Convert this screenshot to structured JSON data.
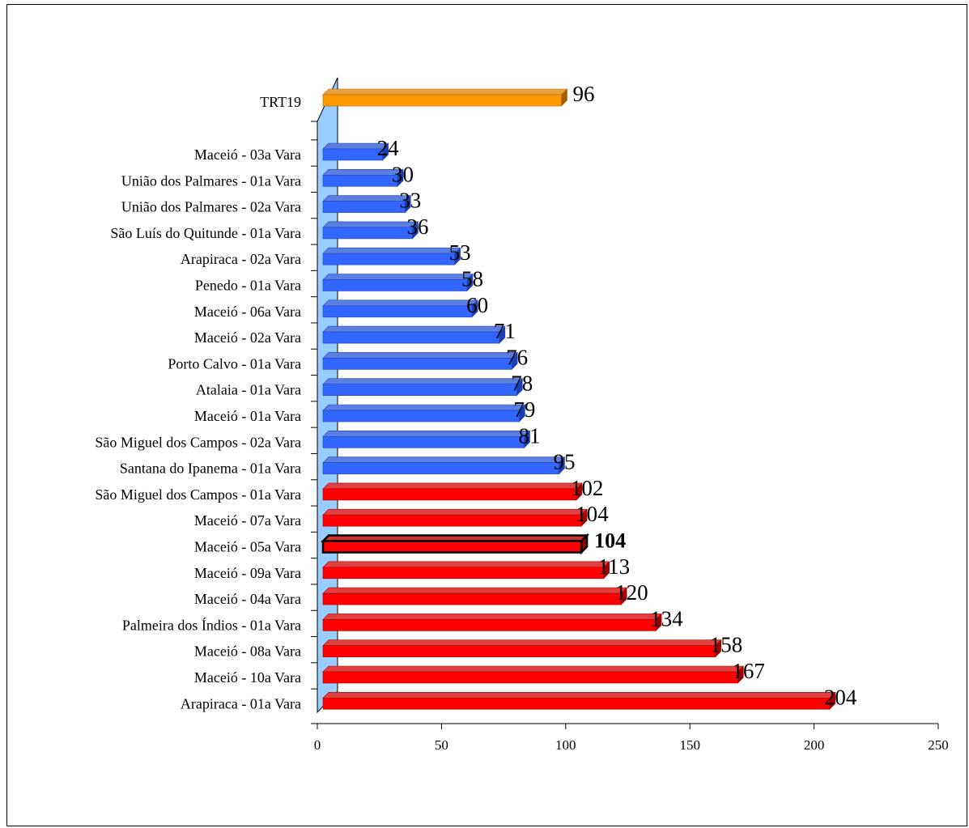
{
  "chart_data": {
    "type": "bar",
    "orientation": "horizontal",
    "categories": [
      "TRT19",
      "Maceió  - 03a Vara",
      "União dos Palmares  - 01a Vara",
      "União dos Palmares  - 02a Vara",
      "São Luís do Quitunde  - 01a Vara",
      "Arapiraca  - 02a Vara",
      "Penedo  - 01a Vara",
      "Maceió  - 06a Vara",
      "Maceió  - 02a Vara",
      "Porto Calvo  - 01a Vara",
      "Atalaia  - 01a Vara",
      "Maceió  - 01a Vara",
      "São Miguel dos Campos  - 02a Vara",
      "Santana do Ipanema  - 01a Vara",
      "São Miguel dos Campos  - 01a Vara",
      "Maceió  - 07a Vara",
      "Maceió  - 05a Vara",
      "Maceió  - 09a Vara",
      "Maceió  - 04a Vara",
      "Palmeira dos Índios  - 01a Vara",
      "Maceió  - 08a Vara",
      "Maceió  - 10a Vara",
      "Arapiraca  - 01a Vara"
    ],
    "values": [
      96,
      24,
      30,
      33,
      36,
      53,
      58,
      60,
      71,
      76,
      78,
      79,
      81,
      95,
      102,
      104,
      104,
      113,
      120,
      134,
      158,
      167,
      204
    ],
    "value_labels": [
      "96",
      "24",
      "30",
      "33",
      "36",
      "53",
      "58",
      "60",
      "71",
      "76",
      "78",
      "79",
      "81",
      "95",
      "102",
      "104",
      "104",
      "113",
      "120",
      "134",
      "158",
      "167",
      "204"
    ],
    "bar_colors": [
      "orange",
      "blue",
      "blue",
      "blue",
      "blue",
      "blue",
      "blue",
      "blue",
      "blue",
      "blue",
      "blue",
      "blue",
      "blue",
      "blue",
      "red",
      "red",
      "highlight",
      "red",
      "red",
      "red",
      "red",
      "red",
      "red"
    ],
    "highlighted_category": "Maceió  - 05a Vara",
    "xlim": [
      0,
      250
    ],
    "x_ticks": [
      "0",
      "50",
      "100",
      "150",
      "200",
      "250"
    ],
    "grid": false,
    "legend": false,
    "title": "",
    "xlabel": "",
    "ylabel": ""
  },
  "colors": {
    "orange": {
      "front": "#ff9900",
      "top": "#e8a040",
      "side": "#a65c00",
      "stroke": "#b36b00"
    },
    "blue": {
      "front": "#3366ff",
      "top": "#5a7fe0",
      "side": "#1a3fb0",
      "stroke": "#2244bb"
    },
    "red": {
      "front": "#ff0000",
      "top": "#e04040",
      "side": "#a00000",
      "stroke": "#b00000"
    },
    "highlight": {
      "front": "#ff0000",
      "top": "#d03030",
      "side": "#990000",
      "stroke": "#000000"
    },
    "wall": "#99ccff"
  }
}
